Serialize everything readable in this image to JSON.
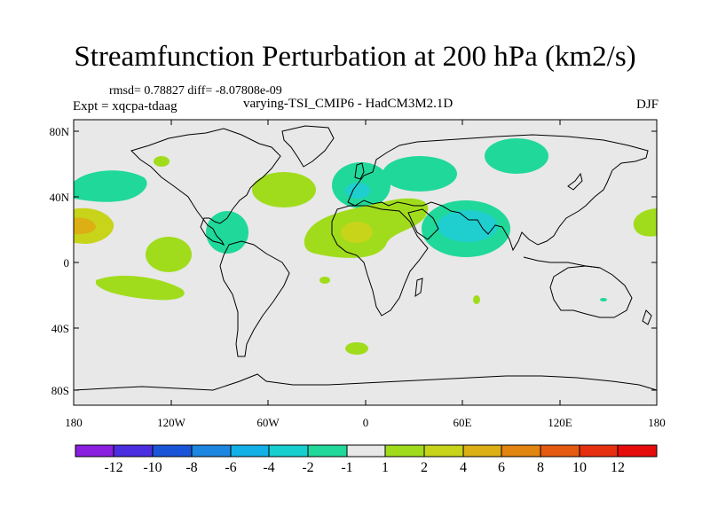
{
  "title": "Streamfunction Perturbation at 200 hPa (km2/s)",
  "stats": "rmsd= 0.78827 diff= -8.07808e-09",
  "experiment": "Expt = xqcpa-tdaag",
  "subtitle": "varying-TSI_CMIP6 - HadCM3M2.1D",
  "season": "DJF",
  "lat_labels": [
    "80N",
    "40N",
    "0",
    "40S",
    "80S"
  ],
  "lon_labels": [
    "180",
    "120W",
    "60W",
    "0",
    "60E",
    "120E",
    "180"
  ],
  "colorbar": {
    "labels": [
      "-12",
      "-10",
      "-8",
      "-6",
      "-4",
      "-2",
      "-1",
      "1",
      "2",
      "4",
      "6",
      "8",
      "10",
      "12"
    ],
    "colors": [
      "#8a1fe0",
      "#4a2ee0",
      "#1a55d8",
      "#1d86e0",
      "#12b0e6",
      "#16d0d0",
      "#20d89a",
      "#e8e8e8",
      "#a0dc1c",
      "#c8d41a",
      "#dcb014",
      "#e28410",
      "#e45a10",
      "#e63010",
      "#e60c0c"
    ]
  },
  "fill_colors": {
    "neg1": "#20d89a",
    "neg2": "#1fcfcf",
    "pos1": "#a0dc1c",
    "pos2": "#c8d41a",
    "background": "#e8e8e8",
    "coast": "#000000"
  }
}
